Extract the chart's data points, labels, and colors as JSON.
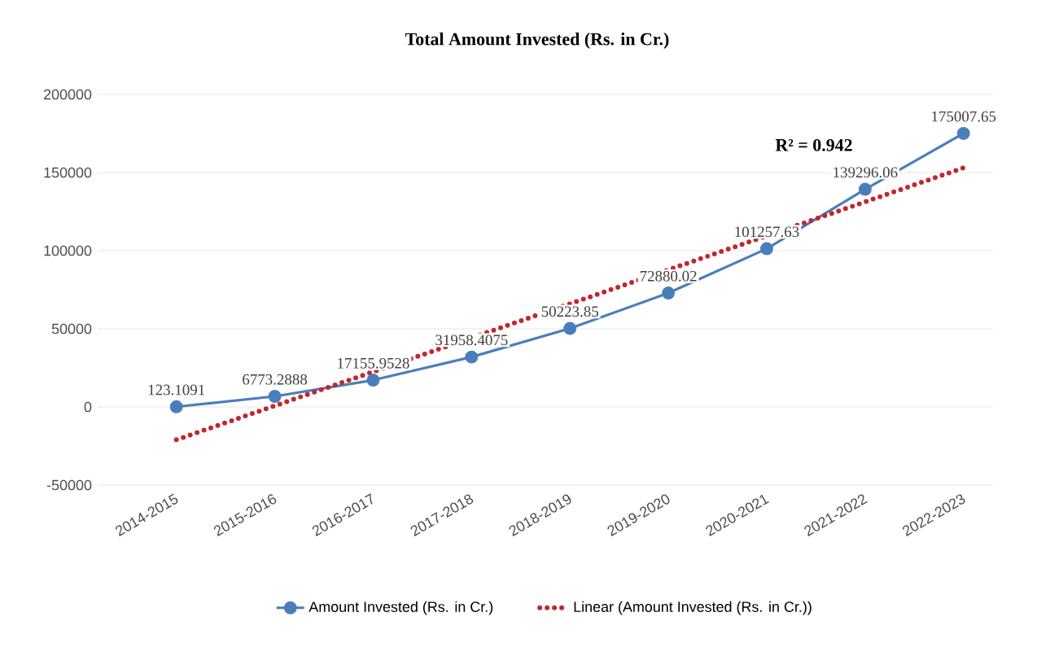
{
  "chart_data": {
    "type": "line",
    "title": "Total Amount Invested (Rs. in Cr.)",
    "categories": [
      "2014-2015",
      "2015-2016",
      "2016-2017",
      "2017-2018",
      "2018-2019",
      "2019-2020",
      "2020-2021",
      "2021-2022",
      "2022-2023"
    ],
    "series": [
      {
        "name": "Amount Invested (Rs. in Cr.)",
        "color": "#4a7ebb",
        "marker": "circle",
        "line_style": "solid",
        "values": [
          123.1091,
          6773.2888,
          17155.9528,
          31958.4075,
          50223.85,
          72880.02,
          101257.63,
          139296.06,
          175007.65
        ],
        "value_labels": [
          "123.1091",
          "6773.2888",
          "17155.9528",
          "31958.4075",
          "50223.85",
          "72880.02",
          "101257.63",
          "139296.06",
          "175007.65"
        ]
      },
      {
        "name": "Linear (Amount Invested (Rs. in Cr.))",
        "type": "line",
        "color": "#c0282d",
        "marker": "none",
        "line_style": "dotted",
        "x": [
          "2014-2015",
          "2022-2023"
        ],
        "values": [
          -21000,
          153000
        ]
      }
    ],
    "annotations": [
      "R² = 0.942"
    ],
    "ylim": [
      -50000,
      200000
    ],
    "yticks": [
      -50000,
      0,
      50000,
      100000,
      150000,
      200000
    ],
    "grid": "y",
    "legend": "bottom"
  }
}
